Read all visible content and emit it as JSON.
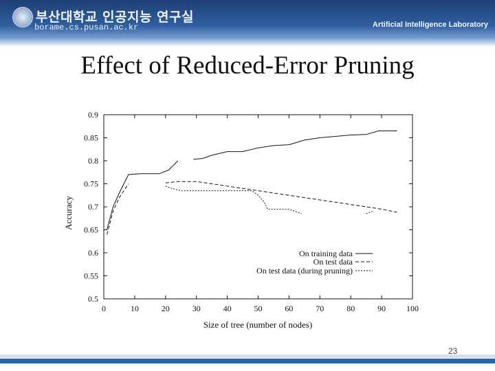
{
  "header": {
    "org_name": "부산대학교 인공지능 연구실",
    "url": "borame.cs.pusan.ac.kr",
    "lab_name": "Artificial Intelligence Laboratory",
    "logo_icon": "university-seal-icon"
  },
  "slide": {
    "title": "Effect of Reduced-Error Pruning",
    "page_number": "23"
  },
  "colors": {
    "header_blue": "#1d3f75",
    "footer_blue": "#2467b0"
  },
  "chart_data": {
    "type": "line",
    "xlabel": "Size of tree (number of nodes)",
    "ylabel": "Accuracy",
    "xlim": [
      0,
      100
    ],
    "ylim": [
      0.5,
      0.9
    ],
    "x_ticks": [
      "0",
      "10",
      "20",
      "30",
      "40",
      "50",
      "60",
      "70",
      "80",
      "90",
      "100"
    ],
    "y_ticks": [
      "0.5",
      "0.55",
      "0.6",
      "0.65",
      "0.7",
      "0.75",
      "0.8",
      "0.85",
      "0.9"
    ],
    "legend_position": "bottom-right",
    "grid": false,
    "series": [
      {
        "name": "On training data",
        "style": "solid",
        "segments": [
          [
            [
              1,
              0.65
            ],
            [
              3,
              0.7
            ],
            [
              5,
              0.73
            ],
            [
              8,
              0.77
            ],
            [
              12,
              0.772
            ],
            [
              18,
              0.772
            ],
            [
              21,
              0.78
            ],
            [
              24,
              0.8
            ]
          ],
          [
            [
              29,
              0.803
            ],
            [
              32,
              0.805
            ],
            [
              35,
              0.812
            ],
            [
              40,
              0.82
            ],
            [
              45,
              0.82
            ],
            [
              50,
              0.828
            ],
            [
              55,
              0.833
            ],
            [
              60,
              0.835
            ],
            [
              65,
              0.845
            ],
            [
              70,
              0.85
            ],
            [
              75,
              0.853
            ],
            [
              80,
              0.856
            ],
            [
              85,
              0.857
            ],
            [
              89,
              0.865
            ],
            [
              95,
              0.865
            ]
          ]
        ]
      },
      {
        "name": "On test data",
        "style": "dashed",
        "segments": [
          [
            [
              1,
              0.64
            ],
            [
              3,
              0.69
            ],
            [
              5,
              0.72
            ],
            [
              7,
              0.74
            ],
            [
              8,
              0.75
            ]
          ],
          [
            [
              20,
              0.752
            ],
            [
              24,
              0.755
            ],
            [
              30,
              0.755
            ],
            [
              35,
              0.75
            ],
            [
              40,
              0.745
            ],
            [
              45,
              0.74
            ],
            [
              50,
              0.735
            ],
            [
              55,
              0.73
            ],
            [
              60,
              0.725
            ],
            [
              65,
              0.72
            ],
            [
              70,
              0.715
            ],
            [
              75,
              0.71
            ],
            [
              80,
              0.705
            ],
            [
              85,
              0.7
            ],
            [
              90,
              0.695
            ],
            [
              95,
              0.688
            ]
          ]
        ]
      },
      {
        "name": "On test data (during pruning)",
        "style": "dashed",
        "segments": [
          [
            [
              20,
              0.745
            ],
            [
              22,
              0.74
            ],
            [
              25,
              0.735
            ],
            [
              30,
              0.735
            ],
            [
              40,
              0.735
            ],
            [
              48,
              0.735
            ],
            [
              50,
              0.725
            ],
            [
              52,
              0.71
            ],
            [
              53,
              0.695
            ],
            [
              57,
              0.695
            ],
            [
              60,
              0.695
            ],
            [
              62,
              0.69
            ],
            [
              64,
              0.685
            ]
          ],
          [
            [
              85,
              0.685
            ],
            [
              87,
              0.69
            ]
          ]
        ]
      }
    ]
  }
}
